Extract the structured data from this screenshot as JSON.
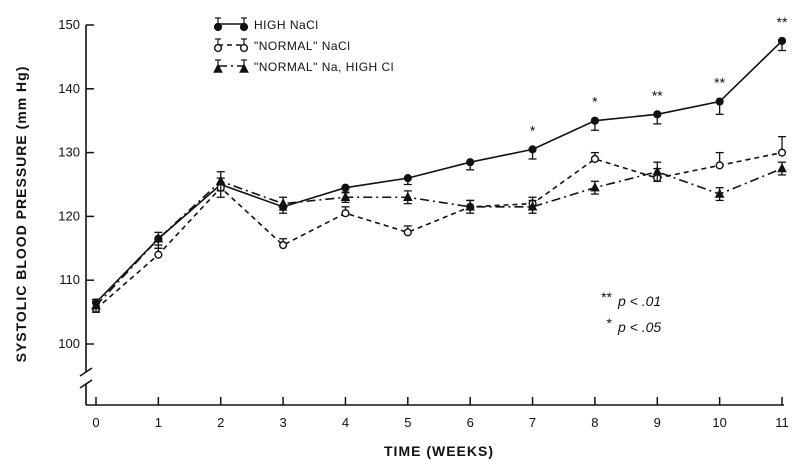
{
  "chart_data": {
    "type": "line",
    "title": "",
    "xlabel": "TIME (WEEKS)",
    "ylabel": "SYSTOLIC BLOOD PRESSURE (mm Hg)",
    "xlim": [
      0,
      11
    ],
    "ylim": [
      100,
      150
    ],
    "x_ticks": [
      "0",
      "1",
      "2",
      "3",
      "4",
      "5",
      "6",
      "7",
      "8",
      "9",
      "10",
      "11"
    ],
    "y_ticks": [
      "100",
      "110",
      "120",
      "130",
      "140",
      "150"
    ],
    "x": [
      0,
      1,
      2,
      3,
      4,
      5,
      6,
      7,
      8,
      9,
      10,
      11
    ],
    "series": [
      {
        "name": "HIGH NaCl",
        "style": "solid",
        "marker": "filled-circle",
        "values": [
          106.5,
          116.5,
          125,
          121.5,
          124.5,
          126,
          128.5,
          130.5,
          135,
          136,
          138,
          147.5
        ],
        "error": [
          1.5,
          1.5,
          2,
          1,
          0.8,
          1,
          1.2,
          1.5,
          1.5,
          1.5,
          2,
          1.5
        ]
      },
      {
        "name": "\"NORMAL\" NaCl",
        "style": "dashed",
        "marker": "open-circle",
        "values": [
          105.5,
          114,
          124.5,
          115.5,
          120.5,
          117.5,
          121.5,
          122,
          129,
          126,
          128,
          130
        ],
        "error": [
          1,
          1,
          1.5,
          1,
          1,
          1,
          1,
          1,
          1,
          1.5,
          2,
          2.5
        ]
      },
      {
        "name": "\"NORMAL\" Na, HIGH Cl",
        "style": "dash-dot",
        "marker": "filled-triangle",
        "values": [
          106,
          116.5,
          125.5,
          122,
          123,
          123,
          121.5,
          121.5,
          124.5,
          127,
          123.5,
          127.5
        ],
        "error": [
          1,
          1,
          1.5,
          1,
          0.8,
          1,
          1,
          1,
          1,
          1.5,
          1,
          1
        ]
      }
    ],
    "significance": [
      {
        "x": 7,
        "label": "*"
      },
      {
        "x": 8,
        "label": "*"
      },
      {
        "x": 9,
        "label": "**"
      },
      {
        "x": 10,
        "label": "**"
      },
      {
        "x": 11,
        "label": "**"
      }
    ],
    "annotations": [
      {
        "label": "**",
        "text": "p < .01"
      },
      {
        "label": "*",
        "text": "p < .05"
      }
    ],
    "legend_placement": "top-left",
    "grid": false,
    "axis_break": "y"
  }
}
